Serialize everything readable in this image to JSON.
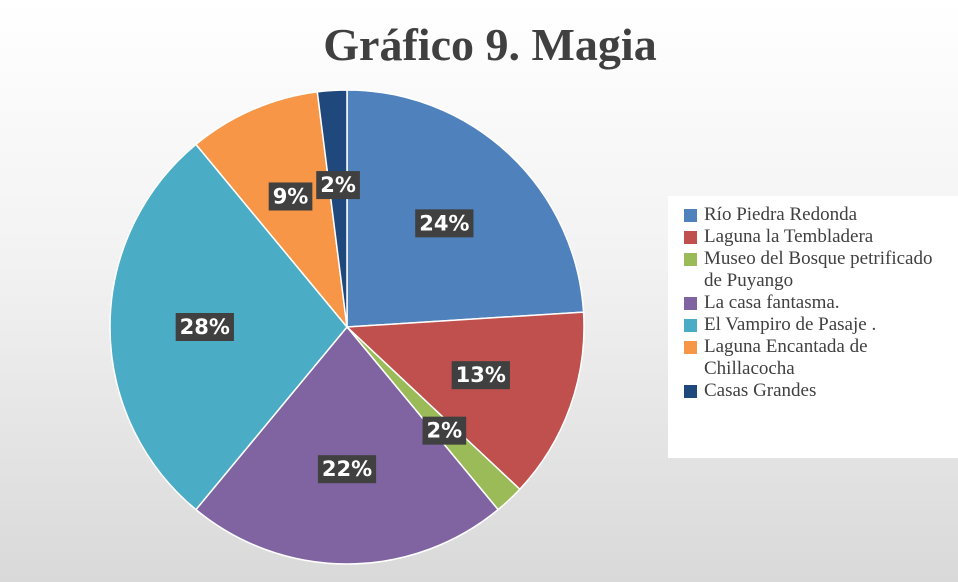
{
  "chart_data": {
    "type": "pie",
    "title": "Gráfico 9. Magia",
    "categories": [
      "Río Piedra Redonda",
      "Laguna la Tembladera",
      "Museo del Bosque petrificado de Puyango",
      "La casa fantasma.",
      "El Vampiro de Pasaje .",
      "Laguna Encantada de Chillacocha",
      "Casas Grandes"
    ],
    "values": [
      24,
      13,
      2,
      22,
      28,
      9,
      2
    ],
    "value_labels": [
      "24%",
      "13%",
      "2%",
      "22%",
      "28%",
      "9%",
      "2%"
    ],
    "colors": [
      "#4f81bd",
      "#c0504d",
      "#9bbb59",
      "#8064a2",
      "#4bacc6",
      "#f79646",
      "#1f497d"
    ],
    "legend": "right"
  }
}
